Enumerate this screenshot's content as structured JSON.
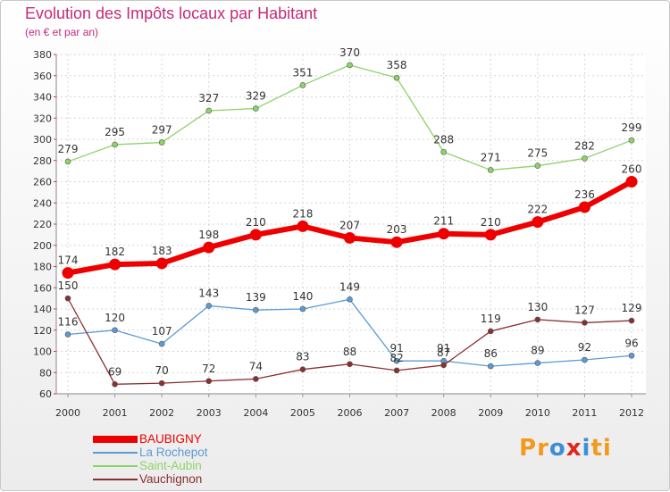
{
  "header": {
    "title": "Evolution des Impôts locaux par Habitant",
    "subtitle": "(en € et par an)"
  },
  "brand": {
    "logo_letters": [
      "P",
      "r",
      "o",
      "x",
      "i",
      "t",
      "i"
    ],
    "logo_colors": [
      "#f39a1e",
      "#f39a1e",
      "#3b8fd6",
      "#e1261c",
      "#3b8fd6",
      "#f39a1e",
      "#f39a1e"
    ]
  },
  "chart_data": {
    "type": "line",
    "title": "Evolution des Impôts locaux par Habitant",
    "subtitle": "(en € et par an)",
    "xlabel": "",
    "ylabel": "",
    "x": [
      "2000",
      "2001",
      "2002",
      "2003",
      "2004",
      "2005",
      "2006",
      "2007",
      "2008",
      "2009",
      "2010",
      "2011",
      "2012"
    ],
    "ylim": [
      60,
      380
    ],
    "yticks": [
      60,
      80,
      100,
      120,
      140,
      160,
      180,
      200,
      220,
      240,
      260,
      280,
      300,
      320,
      340,
      360,
      380
    ],
    "grid": true,
    "legend_position": "bottom-left",
    "series": [
      {
        "name": "Saint-Aubin",
        "color": "#8ed26a",
        "values": [
          279,
          295,
          297,
          327,
          329,
          351,
          370,
          358,
          288,
          271,
          275,
          282,
          299
        ]
      },
      {
        "name": "La Rochepot",
        "color": "#5b9bd5",
        "values": [
          116,
          120,
          107,
          143,
          139,
          140,
          149,
          91,
          91,
          86,
          89,
          92,
          96
        ]
      },
      {
        "name": "Vauchignon",
        "color": "#8b2f2f",
        "values": [
          150,
          69,
          70,
          72,
          74,
          83,
          88,
          82,
          87,
          119,
          130,
          127,
          129
        ]
      },
      {
        "name": "BAUBIGNY",
        "color": "#ee0000",
        "values": [
          174,
          182,
          183,
          198,
          210,
          218,
          207,
          203,
          211,
          210,
          222,
          236,
          260
        ]
      }
    ],
    "legend_order": [
      "BAUBIGNY",
      "La Rochepot",
      "Saint-Aubin",
      "Vauchignon"
    ]
  }
}
